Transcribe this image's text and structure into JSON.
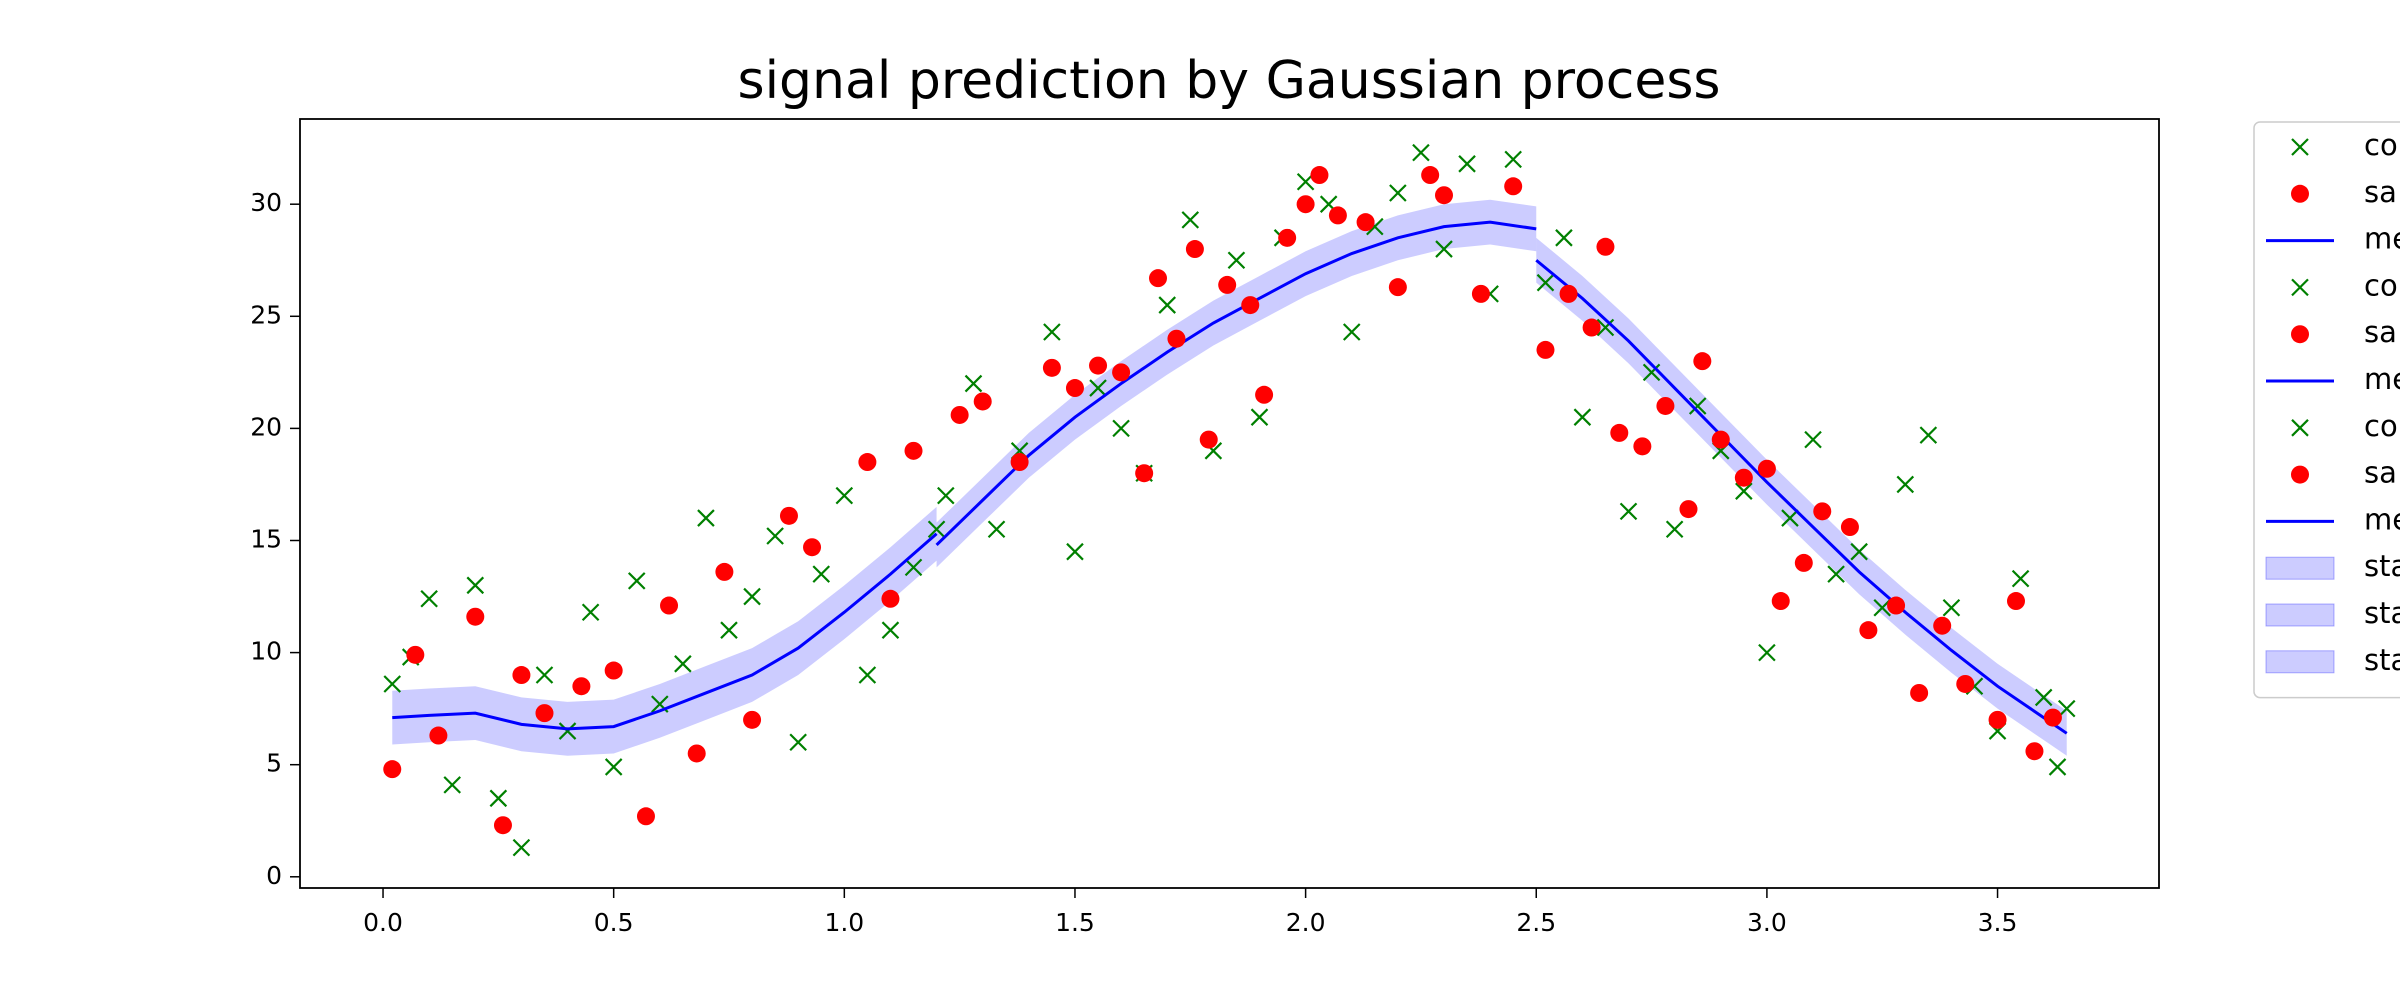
{
  "chart_data": {
    "type": "line",
    "title": "signal prediction by Gaussian process",
    "xlim": [
      -0.18,
      3.85
    ],
    "ylim": [
      -0.5,
      33.8
    ],
    "xticks": [
      {
        "value": 0,
        "label": "0.0"
      },
      0.5,
      {
        "value": 1,
        "label": "1.0"
      },
      1.5,
      {
        "value": 2,
        "label": "2.0"
      },
      2.5,
      {
        "value": 3,
        "label": "3.0"
      },
      3.5
    ],
    "yticks": [
      0,
      5,
      10,
      15,
      20,
      25,
      30
    ],
    "series": [
      {
        "name": "co",
        "color": "green",
        "marker": "x",
        "x": [
          0.02,
          0.06,
          0.1,
          0.15,
          0.2,
          0.25,
          0.3,
          0.35,
          0.4,
          0.45,
          0.5,
          0.55,
          0.6,
          0.65,
          0.7,
          0.75,
          0.8,
          0.85,
          0.9,
          0.95,
          1.0,
          1.05,
          1.1,
          1.15,
          1.2
        ],
        "values": [
          8.6,
          9.8,
          12.4,
          4.1,
          13.0,
          3.5,
          1.3,
          9.0,
          6.5,
          11.8,
          4.9,
          13.2,
          7.7,
          9.5,
          16.0,
          11.0,
          12.5,
          15.2,
          6.0,
          13.5,
          17.0,
          9.0,
          11.0,
          13.8,
          15.5
        ]
      },
      {
        "name": "sa",
        "color": "red",
        "marker": "o",
        "x": [
          0.02,
          0.07,
          0.12,
          0.2,
          0.26,
          0.3,
          0.35,
          0.43,
          0.5,
          0.57,
          0.62,
          0.68,
          0.74,
          0.8,
          0.88,
          0.93,
          1.05,
          1.1,
          1.15
        ],
        "values": [
          4.8,
          9.9,
          6.3,
          11.6,
          2.3,
          9.0,
          7.3,
          8.5,
          9.2,
          2.7,
          12.1,
          5.5,
          13.6,
          7.0,
          16.1,
          14.7,
          18.5,
          12.4,
          19.0
        ]
      },
      {
        "name": "me",
        "color": "blue",
        "marker": "line",
        "x": [
          0.02,
          0.1,
          0.2,
          0.3,
          0.4,
          0.5,
          0.6,
          0.7,
          0.8,
          0.9,
          1.0,
          1.1,
          1.2
        ],
        "values": [
          7.1,
          7.2,
          7.3,
          6.8,
          6.6,
          6.7,
          7.4,
          8.2,
          9.0,
          10.2,
          11.8,
          13.5,
          15.3
        ]
      },
      {
        "name": "co",
        "color": "green",
        "marker": "x",
        "x": [
          1.22,
          1.28,
          1.33,
          1.38,
          1.45,
          1.5,
          1.55,
          1.6,
          1.65,
          1.7,
          1.75,
          1.8,
          1.85,
          1.9,
          1.95,
          2.0,
          2.05,
          2.1,
          2.15,
          2.2,
          2.25,
          2.3,
          2.35,
          2.4,
          2.45
        ],
        "values": [
          17.0,
          22.0,
          15.5,
          19.0,
          24.3,
          14.5,
          21.8,
          20.0,
          18.0,
          25.5,
          29.3,
          19.0,
          27.5,
          20.5,
          28.5,
          31.0,
          30.0,
          24.3,
          29.0,
          30.5,
          32.3,
          28.0,
          31.8,
          26.0,
          32.0
        ]
      },
      {
        "name": "sa",
        "color": "red",
        "marker": "o",
        "x": [
          1.25,
          1.3,
          1.38,
          1.45,
          1.5,
          1.55,
          1.6,
          1.65,
          1.68,
          1.72,
          1.76,
          1.79,
          1.83,
          1.88,
          1.91,
          1.96,
          2.0,
          2.03,
          2.07,
          2.13,
          2.2,
          2.27,
          2.3,
          2.38,
          2.45
        ],
        "values": [
          20.6,
          21.2,
          18.5,
          22.7,
          21.8,
          22.8,
          22.5,
          18.0,
          26.7,
          24.0,
          28.0,
          19.5,
          26.4,
          25.5,
          21.5,
          28.5,
          30.0,
          31.3,
          29.5,
          29.2,
          26.3,
          31.3,
          30.4,
          26.0,
          30.8
        ]
      },
      {
        "name": "me",
        "color": "blue",
        "marker": "line",
        "x": [
          1.2,
          1.3,
          1.4,
          1.5,
          1.6,
          1.7,
          1.8,
          1.9,
          2.0,
          2.1,
          2.2,
          2.3,
          2.4,
          2.5
        ],
        "values": [
          14.8,
          16.8,
          18.8,
          20.5,
          22.0,
          23.4,
          24.7,
          25.8,
          26.9,
          27.8,
          28.5,
          29.0,
          29.2,
          28.9
        ]
      },
      {
        "name": "co",
        "color": "green",
        "marker": "x",
        "x": [
          2.52,
          2.56,
          2.6,
          2.65,
          2.7,
          2.75,
          2.8,
          2.85,
          2.9,
          2.95,
          3.0,
          3.05,
          3.1,
          3.15,
          3.2,
          3.25,
          3.3,
          3.35,
          3.4,
          3.45,
          3.5,
          3.55,
          3.6,
          3.63,
          3.65
        ],
        "values": [
          26.5,
          28.5,
          20.5,
          24.5,
          16.3,
          22.5,
          15.5,
          21.0,
          19.0,
          17.2,
          10.0,
          16.0,
          19.5,
          13.5,
          14.5,
          12.0,
          17.5,
          19.7,
          12.0,
          8.5,
          6.5,
          13.3,
          8.0,
          4.9,
          7.5
        ]
      },
      {
        "name": "sa",
        "color": "red",
        "marker": "o",
        "x": [
          2.52,
          2.57,
          2.62,
          2.65,
          2.68,
          2.73,
          2.78,
          2.83,
          2.86,
          2.9,
          2.95,
          3.0,
          3.03,
          3.08,
          3.12,
          3.18,
          3.22,
          3.28,
          3.33,
          3.38,
          3.43,
          3.5,
          3.54,
          3.58,
          3.62
        ],
        "values": [
          23.5,
          26.0,
          24.5,
          28.1,
          19.8,
          19.2,
          21.0,
          16.4,
          23.0,
          19.5,
          17.8,
          18.2,
          12.3,
          14.0,
          16.3,
          15.6,
          11.0,
          12.1,
          8.2,
          11.2,
          8.6,
          7.0,
          12.3,
          5.6,
          7.1
        ]
      },
      {
        "name": "me",
        "color": "blue",
        "marker": "line",
        "x": [
          2.5,
          2.6,
          2.7,
          2.8,
          2.9,
          3.0,
          3.1,
          3.2,
          3.3,
          3.4,
          3.5,
          3.6,
          3.65
        ],
        "values": [
          27.5,
          25.8,
          23.9,
          21.8,
          19.7,
          17.6,
          15.6,
          13.6,
          11.8,
          10.1,
          8.5,
          7.1,
          6.4
        ]
      },
      {
        "name": "sta",
        "color": "blue",
        "marker": "band",
        "x": [
          0.02,
          0.1,
          0.2,
          0.3,
          0.4,
          0.5,
          0.6,
          0.7,
          0.8,
          0.9,
          1.0,
          1.1,
          1.2
        ],
        "lower": [
          5.9,
          6.0,
          6.1,
          5.6,
          5.4,
          5.5,
          6.2,
          7.0,
          7.8,
          9.0,
          10.6,
          12.3,
          14.1
        ],
        "upper": [
          8.3,
          8.4,
          8.5,
          8.0,
          7.8,
          7.9,
          8.6,
          9.4,
          10.2,
          11.4,
          13.0,
          14.7,
          16.5
        ]
      },
      {
        "name": "sta",
        "color": "blue",
        "marker": "band",
        "x": [
          1.2,
          1.3,
          1.4,
          1.5,
          1.6,
          1.7,
          1.8,
          1.9,
          2.0,
          2.1,
          2.2,
          2.3,
          2.4,
          2.5
        ],
        "lower": [
          13.8,
          15.8,
          17.8,
          19.5,
          21.0,
          22.4,
          23.7,
          24.8,
          25.9,
          26.8,
          27.5,
          28.0,
          28.2,
          27.9
        ],
        "upper": [
          15.8,
          17.8,
          19.8,
          21.5,
          23.0,
          24.4,
          25.7,
          26.8,
          27.9,
          28.8,
          29.5,
          30.0,
          30.2,
          29.9
        ]
      },
      {
        "name": "sta",
        "color": "blue",
        "marker": "band",
        "x": [
          2.5,
          2.6,
          2.7,
          2.8,
          2.9,
          3.0,
          3.1,
          3.2,
          3.3,
          3.4,
          3.5,
          3.6,
          3.65
        ],
        "lower": [
          26.5,
          24.8,
          22.9,
          20.8,
          18.7,
          16.6,
          14.6,
          12.6,
          10.8,
          9.1,
          7.5,
          6.1,
          5.4
        ],
        "upper": [
          28.5,
          26.8,
          24.9,
          22.8,
          20.7,
          18.6,
          16.6,
          14.6,
          12.8,
          11.1,
          9.5,
          8.1,
          7.4
        ]
      }
    ]
  }
}
